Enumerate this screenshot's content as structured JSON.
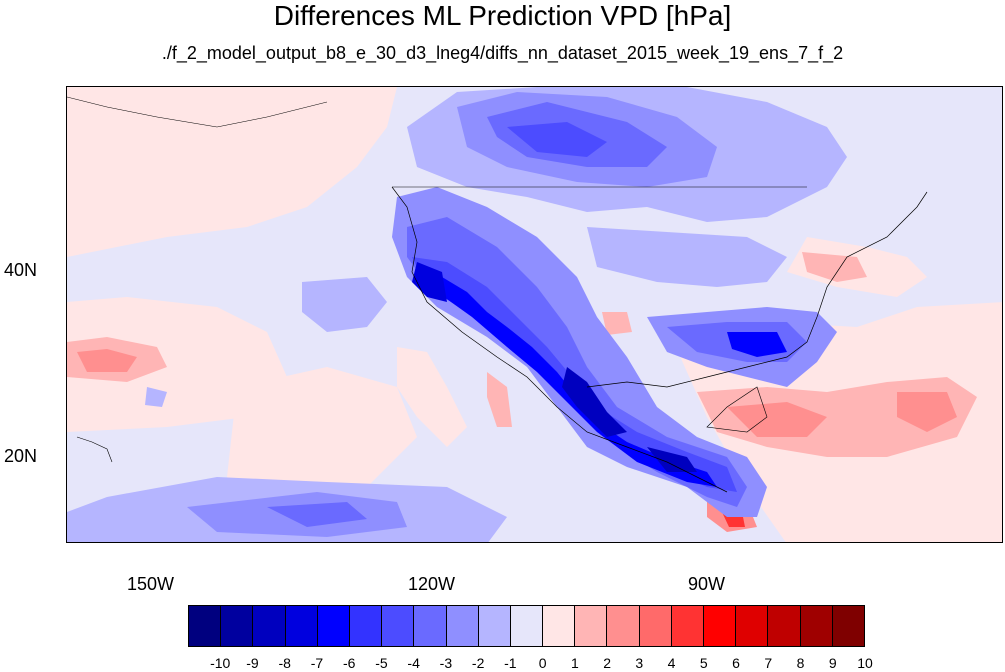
{
  "title": "Differences ML Prediction VPD [hPa]",
  "subtitle": "./f_2_model_output_b8_e_30_d3_lneg4/diffs_nn_dataset_2015_week_19_ens_7_f_2",
  "map": {
    "x_ticks": [
      "150W",
      "120W",
      "90W"
    ],
    "y_ticks": [
      "40N",
      "20N"
    ]
  },
  "colorbar": {
    "labels": [
      "-10",
      "-9",
      "-8",
      "-7",
      "-6",
      "-5",
      "-4",
      "-3",
      "-2",
      "-1",
      "0",
      "1",
      "2",
      "3",
      "4",
      "5",
      "6",
      "7",
      "8",
      "9",
      "10"
    ],
    "colors": [
      "#00007f",
      "#00009f",
      "#0000bf",
      "#0000df",
      "#0000ff",
      "#3333ff",
      "#4c4cff",
      "#6a6aff",
      "#8f8fff",
      "#b5b5ff",
      "#e6e6fa",
      "#ffe6e6",
      "#ffb5b5",
      "#ff8f8f",
      "#ff6a6a",
      "#ff3333",
      "#ff0000",
      "#df0000",
      "#bf0000",
      "#9f0000",
      "#7f0000"
    ]
  }
}
